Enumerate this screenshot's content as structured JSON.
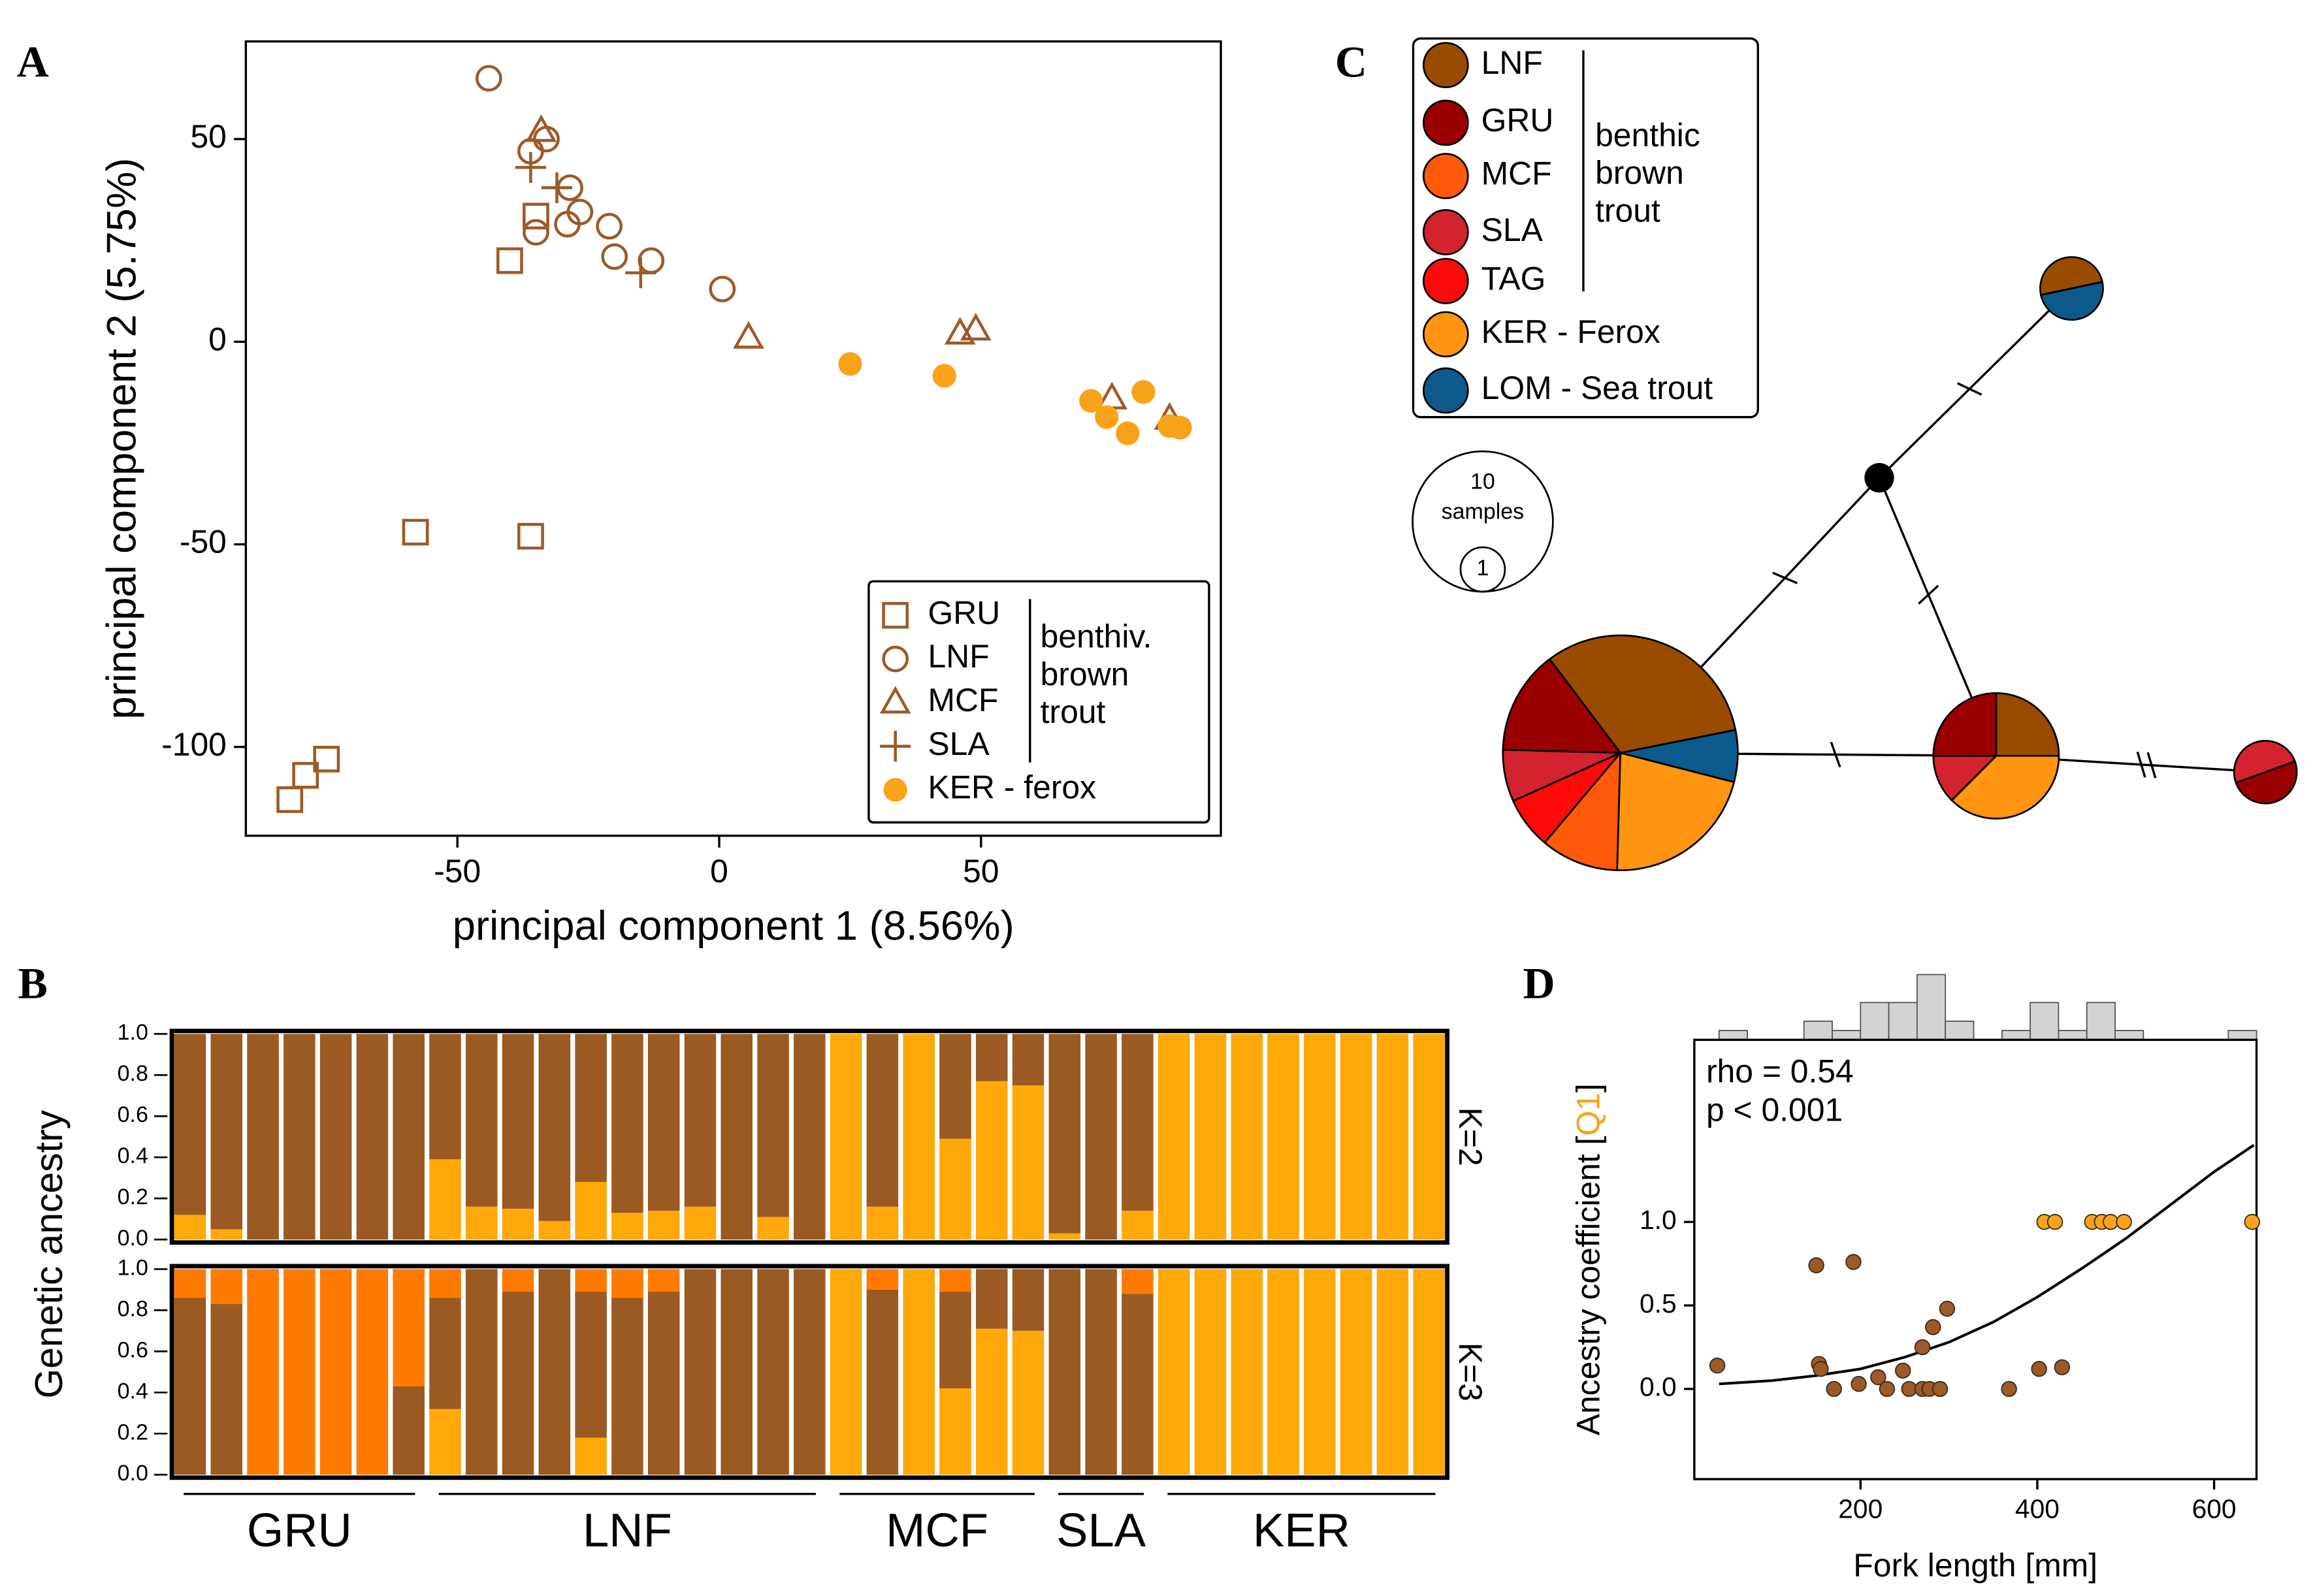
{
  "chart_data": [
    {
      "panel": "A",
      "type": "scatter",
      "xlabel": "principal component 1 (8.56%)",
      "ylabel": "principal component 2 (5.75%)",
      "xlim": [
        -90.4,
        95.8
      ],
      "ylim": [
        -121.9,
        74.1
      ],
      "xticks": [
        -50,
        0,
        50
      ],
      "yticks": [
        -100,
        -50,
        0,
        50
      ],
      "legend": "lower right",
      "legend_group_label": [
        "benthiv.",
        "brown",
        "trout"
      ],
      "series": [
        {
          "name": "GRU",
          "color": "#9c5a28",
          "marker": "square",
          "x": [
            -40,
            -35,
            -58,
            -36,
            -82,
            -79,
            -75
          ],
          "values": [
            20,
            31,
            -47,
            -48,
            -113,
            -107,
            -103
          ]
        },
        {
          "name": "LNF",
          "color": "#9c5a28",
          "marker": "circle",
          "x": [
            -44,
            -36,
            -33,
            -35,
            -28.5,
            -29,
            -26.6,
            -21,
            -20,
            -13,
            0.6
          ],
          "values": [
            65,
            47,
            50,
            27,
            38,
            29,
            32,
            28.5,
            21,
            20,
            13
          ]
        },
        {
          "name": "MCF",
          "color": "#9c5a28",
          "marker": "triangle",
          "x": [
            -34,
            5.6,
            46,
            49,
            75,
            86
          ],
          "values": [
            52,
            1,
            2,
            3,
            -14,
            -19
          ]
        },
        {
          "name": "SLA",
          "color": "#9c5a28",
          "marker": "plus",
          "x": [
            -36,
            -31,
            -15
          ],
          "values": [
            43,
            38,
            17
          ]
        },
        {
          "name": "KER - ferox",
          "color": "#f9a31b",
          "marker": "dot",
          "x": [
            25,
            43,
            71,
            74,
            78,
            81,
            86,
            88
          ],
          "values": [
            -5.5,
            -8.4,
            -14.6,
            -18.6,
            -22.6,
            -12.4,
            -20.8,
            -21.2
          ]
        }
      ]
    },
    {
      "panel": "B",
      "type": "structure",
      "ylabel": "Genetic ancestry",
      "ylim": [
        0,
        1
      ],
      "yticks": [
        {
          "value": 0,
          "label": "0.0"
        },
        {
          "value": 0.2,
          "label": "0.2"
        },
        {
          "value": 0.4,
          "label": "0.4"
        },
        {
          "value": 0.6,
          "label": "0.6"
        },
        {
          "value": 0.8,
          "label": "0.8"
        },
        {
          "value": 1,
          "label": "1.0"
        }
      ],
      "categories": [
        "GRU",
        "GRU",
        "GRU",
        "GRU",
        "GRU",
        "GRU",
        "GRU",
        "LNF",
        "LNF",
        "LNF",
        "LNF",
        "LNF",
        "LNF",
        "LNF",
        "LNF",
        "LNF",
        "LNF",
        "LNF",
        "MCF",
        "MCF",
        "MCF",
        "MCF",
        "MCF",
        "MCF",
        "SLA",
        "SLA",
        "SLA",
        "KER",
        "KER",
        "KER",
        "KER",
        "KER",
        "KER",
        "KER",
        "KER"
      ],
      "rows": [
        {
          "label": "K=2",
          "series": [
            {
              "color": "#ffa80a",
              "values": [
                0.12,
                0.05,
                0,
                0,
                0,
                0,
                0,
                0.39,
                0.16,
                0.15,
                0.09,
                0.28,
                0.13,
                0.14,
                0.16,
                0,
                0.11,
                0,
                1,
                0.16,
                1,
                0.49,
                0.77,
                0.75,
                0.03,
                0,
                0.14,
                1,
                1,
                1,
                1,
                1,
                1,
                1,
                1
              ]
            },
            {
              "color": "#9a5a22",
              "values": [
                0.88,
                0.95,
                1,
                1,
                1,
                1,
                1,
                0.61,
                0.84,
                0.85,
                0.91,
                0.72,
                0.87,
                0.86,
                0.84,
                1,
                0.89,
                1,
                0,
                0.84,
                0,
                0.51,
                0.23,
                0.25,
                0.97,
                1,
                0.86,
                0,
                0,
                0,
                0,
                0,
                0,
                0,
                0
              ]
            }
          ]
        },
        {
          "label": "K=3",
          "series": [
            {
              "color": "#ffa80a",
              "values": [
                0,
                0,
                0,
                0,
                0,
                0,
                0,
                0.32,
                0,
                0,
                0,
                0.18,
                0,
                0,
                0,
                0,
                0,
                0,
                1,
                0,
                1,
                0.42,
                0.71,
                0.7,
                0,
                0,
                0,
                1,
                1,
                1,
                1,
                1,
                1,
                1,
                1
              ]
            },
            {
              "color": "#9a5a22",
              "values": [
                0.86,
                0.83,
                0,
                0,
                0,
                0,
                0.43,
                0.54,
                1,
                0.89,
                1,
                0.71,
                0.86,
                0.89,
                1,
                1,
                1,
                1,
                0,
                0.9,
                0,
                0.47,
                0.29,
                0.3,
                1,
                1,
                0.88,
                0,
                0,
                0,
                0,
                0,
                0,
                0,
                0
              ]
            },
            {
              "color": "#ff7b00",
              "values": [
                0.14,
                0.17,
                1,
                1,
                1,
                1,
                0.57,
                0.14,
                0,
                0.11,
                0,
                0.11,
                0.14,
                0.11,
                0,
                0,
                0,
                0,
                0,
                0.1,
                0,
                0.11,
                0,
                0,
                0,
                0,
                0.12,
                0,
                0,
                0,
                0,
                0,
                0,
                0,
                0
              ]
            }
          ]
        }
      ]
    },
    {
      "panel": "C",
      "type": "network",
      "legend_group_label": [
        "benthic",
        "brown",
        "trout"
      ],
      "series": [
        {
          "name": "LNF",
          "color": "#994c00",
          "values": [
            9,
            2,
            1,
            0,
            0
          ]
        },
        {
          "name": "GRU",
          "color": "#9a0000",
          "values": [
            4,
            2,
            0,
            1,
            0
          ]
        },
        {
          "name": "MCF",
          "color": "#ff5a0a",
          "values": [
            3,
            0,
            0,
            0,
            0
          ]
        },
        {
          "name": "SLA",
          "color": "#d2232f",
          "values": [
            2,
            1,
            0,
            1,
            0
          ]
        },
        {
          "name": "TAG",
          "color": "#ff0a0a",
          "values": [
            2,
            0,
            0,
            0,
            0
          ]
        },
        {
          "name": "KER - Ferox",
          "color": "#ff9510",
          "values": [
            6,
            3,
            0,
            0,
            0
          ]
        },
        {
          "name": "LOM - Sea trout",
          "color": "#0c5a8c",
          "values": [
            2,
            0,
            1,
            0,
            0
          ]
        }
      ],
      "edges": [
        {
          "from": 4,
          "to": 2,
          "mutations": 1
        },
        {
          "from": 4,
          "to": 0,
          "mutations": 1
        },
        {
          "from": 4,
          "to": 1,
          "mutations": 1
        },
        {
          "from": 0,
          "to": 1,
          "mutations": 1
        },
        {
          "from": 1,
          "to": 3,
          "mutations": 2
        }
      ],
      "size_legend": [
        {
          "value": 10,
          "label": "samples"
        },
        {
          "value": 1
        }
      ]
    },
    {
      "panel": "D",
      "type": "scatter",
      "xlabel": "Fork length [mm]",
      "ylabel": [
        {
          "text": "Ancestry coefficient ["
        },
        {
          "text": "Q1",
          "color": "#f9a31b"
        },
        {
          "text": "]"
        }
      ],
      "annotations": [
        "rho = 0.54",
        "p < 0.001"
      ],
      "xlim": [
        12,
        648
      ],
      "ylim": [
        -0.54,
        2.09
      ],
      "xticks": [
        200,
        400,
        600
      ],
      "yticks": [
        {
          "value": 0,
          "label": "0.0"
        },
        {
          "value": 0.5,
          "label": "0.5"
        },
        {
          "value": 1,
          "label": "1.0"
        }
      ],
      "series": [
        {
          "color": "#9c5a28",
          "marker": "dot",
          "x": [
            38,
            153,
            155,
            150,
            192,
            170,
            198,
            220,
            230,
            248,
            255,
            270,
            270,
            282,
            298,
            278,
            290,
            368,
            402,
            428
          ],
          "values": [
            0.14,
            0.15,
            0.12,
            0.74,
            0.76,
            0,
            0.03,
            0.07,
            0,
            0.11,
            0,
            0.25,
            0,
            0.37,
            0.48,
            0,
            0,
            0,
            0.12,
            0.13
          ]
        },
        {
          "color": "#f9a31b",
          "marker": "dot",
          "x": [
            408,
            420,
            462,
            473,
            483,
            498,
            643
          ],
          "values": [
            1,
            1,
            1,
            1,
            1,
            1,
            1
          ]
        }
      ],
      "curve": {
        "color": "#000000",
        "x": [
          40,
          100,
          150,
          200,
          250,
          300,
          350,
          400,
          450,
          500,
          550,
          600,
          645
        ],
        "values": [
          0.03,
          0.05,
          0.08,
          0.12,
          0.19,
          0.28,
          0.4,
          0.55,
          0.72,
          0.9,
          1.1,
          1.3,
          1.46
        ]
      },
      "histogram": {
        "color": "#d3d3d3",
        "bins": [
          40,
          72,
          104,
          136,
          168,
          200,
          232,
          264,
          296,
          328,
          360,
          392,
          424,
          456,
          488,
          520,
          552,
          584,
          616,
          648
        ],
        "counts": [
          1,
          0,
          0,
          2,
          1,
          4,
          4,
          7,
          2,
          0,
          1,
          4,
          1,
          4,
          1,
          0,
          0,
          0,
          1
        ]
      }
    }
  ]
}
